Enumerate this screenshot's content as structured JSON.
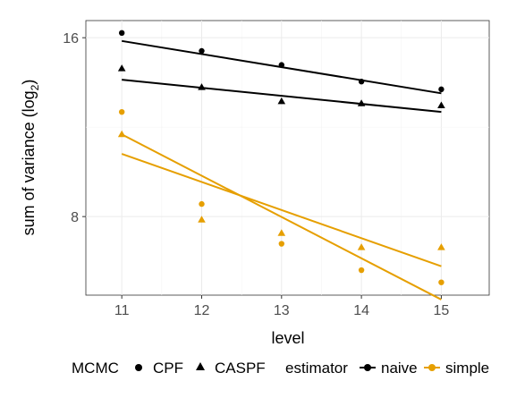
{
  "chart_data": {
    "type": "scatter",
    "xlabel": "level",
    "ylabel_main": "sum of variance (log",
    "ylabel_sub": "2",
    "ylabel_close": ")",
    "y_scale": "log2",
    "xlim": [
      10.55,
      15.6
    ],
    "ylim": [
      5.9,
      17.1
    ],
    "x_ticks": [
      11,
      12,
      13,
      14,
      15
    ],
    "y_ticks": [
      8,
      16
    ],
    "grid": true,
    "legend_position": "bottom",
    "legend": {
      "mcmc_title": "MCMC",
      "mcmc_items": [
        {
          "label": "CPF",
          "shape": "circle"
        },
        {
          "label": "CASPF",
          "shape": "triangle"
        }
      ],
      "estimator_title": "estimator",
      "estimator_items": [
        {
          "label": "naive",
          "color": "#000000"
        },
        {
          "label": "simple",
          "color": "#E69F00"
        }
      ]
    },
    "colors": {
      "naive": "#000000",
      "simple": "#E69F00"
    },
    "series": [
      {
        "estimator": "naive",
        "mcmc": "CPF",
        "x": [
          11,
          12,
          13,
          14,
          15
        ],
        "y": [
          16.3,
          15.2,
          14.4,
          13.5,
          13.1
        ],
        "fit": {
          "x": [
            11,
            15
          ],
          "y": [
            15.8,
            12.9
          ]
        }
      },
      {
        "estimator": "naive",
        "mcmc": "CASPF",
        "x": [
          11,
          12,
          13,
          14,
          15
        ],
        "y": [
          14.2,
          13.2,
          12.5,
          12.4,
          12.3
        ],
        "fit": {
          "x": [
            11,
            15
          ],
          "y": [
            13.6,
            12.0
          ]
        }
      },
      {
        "estimator": "simple",
        "mcmc": "CPF",
        "x": [
          11,
          12,
          13,
          14,
          15
        ],
        "y": [
          12.0,
          8.4,
          7.2,
          6.5,
          6.2
        ],
        "fit": {
          "x": [
            11,
            15
          ],
          "y": [
            11.0,
            5.8
          ]
        }
      },
      {
        "estimator": "simple",
        "mcmc": "CASPF",
        "x": [
          11,
          12,
          13,
          14,
          15
        ],
        "y": [
          11.0,
          7.9,
          7.5,
          7.1,
          7.1
        ],
        "fit": {
          "x": [
            11,
            15
          ],
          "y": [
            10.2,
            6.6
          ]
        }
      }
    ]
  }
}
